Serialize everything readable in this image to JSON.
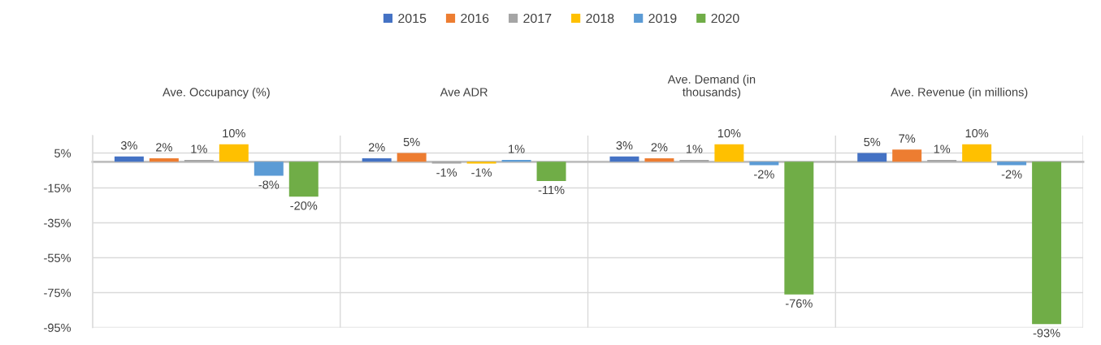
{
  "chart_data": {
    "type": "bar",
    "categories": [
      "Ave. Occupancy (%)",
      "Ave ADR",
      "Ave. Demand (in\nthousands)",
      "Ave. Revenue (in millions)"
    ],
    "series": [
      {
        "name": "2015",
        "color": "#4472c4",
        "values": [
          3,
          2,
          3,
          5
        ],
        "value_labels": [
          "3%",
          "2%",
          "3%",
          "5%"
        ]
      },
      {
        "name": "2016",
        "color": "#ed7d31",
        "values": [
          2,
          5,
          2,
          7
        ],
        "value_labels": [
          "2%",
          "5%",
          "2%",
          "7%"
        ]
      },
      {
        "name": "2017",
        "color": "#a5a5a5",
        "values": [
          1,
          -1,
          1,
          1
        ],
        "value_labels": [
          "1%",
          "-1%",
          "1%",
          "1%"
        ]
      },
      {
        "name": "2018",
        "color": "#ffc000",
        "values": [
          10,
          -1,
          10,
          10
        ],
        "value_labels": [
          "10%",
          "-1%",
          "10%",
          "10%"
        ]
      },
      {
        "name": "2019",
        "color": "#5b9bd5",
        "values": [
          -8,
          1,
          -2,
          -2
        ],
        "value_labels": [
          "-8%",
          "1%",
          "-2%",
          "-2%"
        ]
      },
      {
        "name": "2020",
        "color": "#70ad47",
        "values": [
          -20,
          -11,
          -76,
          -93
        ],
        "value_labels": [
          "-20%",
          "-11%",
          "-76%",
          "-93%"
        ]
      }
    ],
    "ylim": [
      -95,
      15
    ],
    "yticks": [
      {
        "value": 5,
        "label": "5%"
      },
      {
        "value": -15,
        "label": "-15%"
      },
      {
        "value": -35,
        "label": "-35%"
      },
      {
        "value": -55,
        "label": "-55%"
      },
      {
        "value": -75,
        "label": "-75%"
      },
      {
        "value": -95,
        "label": "-95%"
      }
    ],
    "grid": true,
    "legend": "top"
  }
}
